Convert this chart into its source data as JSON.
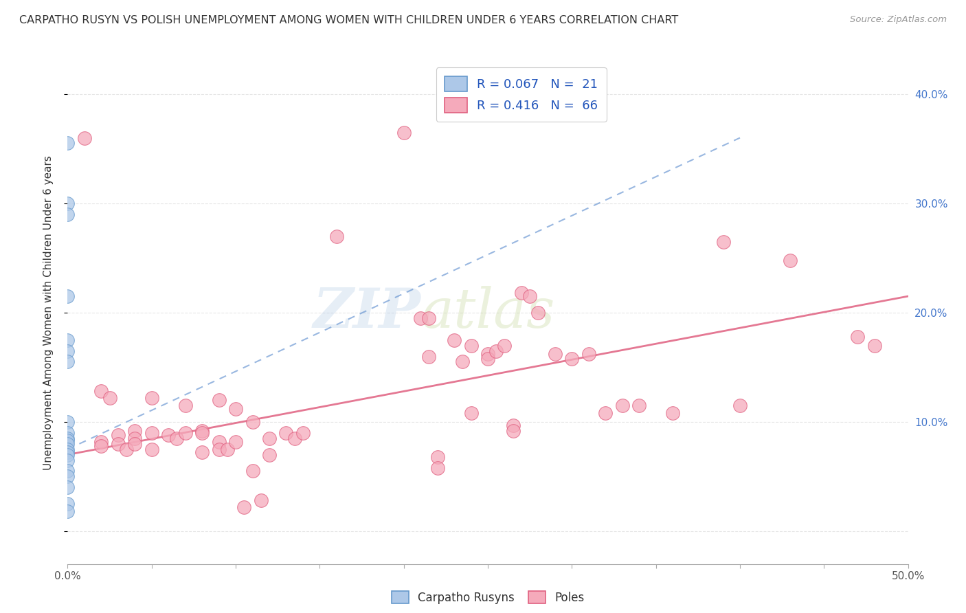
{
  "title": "CARPATHO RUSYN VS POLISH UNEMPLOYMENT AMONG WOMEN WITH CHILDREN UNDER 6 YEARS CORRELATION CHART",
  "source": "Source: ZipAtlas.com",
  "ylabel": "Unemployment Among Women with Children Under 6 years",
  "xmin": 0.0,
  "xmax": 0.5,
  "ymin": -0.03,
  "ymax": 0.43,
  "xtick_positions": [
    0.0,
    0.05,
    0.1,
    0.15,
    0.2,
    0.25,
    0.3,
    0.35,
    0.4,
    0.45,
    0.5
  ],
  "xtick_labels_sparse": {
    "0.0": "0.0%",
    "0.50": "50.0%"
  },
  "ytick_positions": [
    0.0,
    0.1,
    0.2,
    0.3,
    0.4
  ],
  "ytick_labels_right": [
    "",
    "10.0%",
    "20.0%",
    "30.0%",
    "40.0%"
  ],
  "legend_label1": "Carpatho Rusyns",
  "legend_label2": "Poles",
  "color_rusyn_fill": "#adc8e8",
  "color_rusyn_edge": "#6699cc",
  "color_poles_fill": "#f5aabb",
  "color_poles_edge": "#e06080",
  "color_rusyn_trend": "#5588cc",
  "color_poles_trend": "#e06080",
  "watermark_zip": "ZIP",
  "watermark_atlas": "atlas",
  "rusyn_points": [
    [
      0.0,
      0.355
    ],
    [
      0.0,
      0.3
    ],
    [
      0.0,
      0.29
    ],
    [
      0.0,
      0.215
    ],
    [
      0.0,
      0.175
    ],
    [
      0.0,
      0.165
    ],
    [
      0.0,
      0.155
    ],
    [
      0.0,
      0.1
    ],
    [
      0.0,
      0.09
    ],
    [
      0.0,
      0.085
    ],
    [
      0.0,
      0.083
    ],
    [
      0.0,
      0.08
    ],
    [
      0.0,
      0.075
    ],
    [
      0.0,
      0.072
    ],
    [
      0.0,
      0.07
    ],
    [
      0.0,
      0.065
    ],
    [
      0.0,
      0.055
    ],
    [
      0.0,
      0.05
    ],
    [
      0.0,
      0.04
    ],
    [
      0.0,
      0.025
    ],
    [
      0.0,
      0.018
    ]
  ],
  "poles_points": [
    [
      0.01,
      0.36
    ],
    [
      0.02,
      0.128
    ],
    [
      0.02,
      0.082
    ],
    [
      0.02,
      0.078
    ],
    [
      0.025,
      0.122
    ],
    [
      0.03,
      0.088
    ],
    [
      0.03,
      0.08
    ],
    [
      0.035,
      0.075
    ],
    [
      0.04,
      0.092
    ],
    [
      0.04,
      0.085
    ],
    [
      0.04,
      0.08
    ],
    [
      0.05,
      0.122
    ],
    [
      0.05,
      0.09
    ],
    [
      0.05,
      0.075
    ],
    [
      0.06,
      0.088
    ],
    [
      0.065,
      0.085
    ],
    [
      0.07,
      0.115
    ],
    [
      0.07,
      0.09
    ],
    [
      0.08,
      0.092
    ],
    [
      0.08,
      0.09
    ],
    [
      0.08,
      0.072
    ],
    [
      0.09,
      0.12
    ],
    [
      0.09,
      0.082
    ],
    [
      0.09,
      0.075
    ],
    [
      0.095,
      0.075
    ],
    [
      0.1,
      0.112
    ],
    [
      0.1,
      0.082
    ],
    [
      0.105,
      0.022
    ],
    [
      0.11,
      0.1
    ],
    [
      0.11,
      0.055
    ],
    [
      0.115,
      0.028
    ],
    [
      0.12,
      0.085
    ],
    [
      0.12,
      0.07
    ],
    [
      0.13,
      0.09
    ],
    [
      0.135,
      0.085
    ],
    [
      0.14,
      0.09
    ],
    [
      0.16,
      0.27
    ],
    [
      0.2,
      0.365
    ],
    [
      0.21,
      0.195
    ],
    [
      0.215,
      0.16
    ],
    [
      0.215,
      0.195
    ],
    [
      0.22,
      0.068
    ],
    [
      0.22,
      0.058
    ],
    [
      0.23,
      0.175
    ],
    [
      0.235,
      0.155
    ],
    [
      0.24,
      0.17
    ],
    [
      0.24,
      0.108
    ],
    [
      0.25,
      0.162
    ],
    [
      0.25,
      0.158
    ],
    [
      0.255,
      0.165
    ],
    [
      0.26,
      0.17
    ],
    [
      0.265,
      0.097
    ],
    [
      0.265,
      0.092
    ],
    [
      0.27,
      0.218
    ],
    [
      0.275,
      0.215
    ],
    [
      0.28,
      0.2
    ],
    [
      0.29,
      0.162
    ],
    [
      0.3,
      0.158
    ],
    [
      0.31,
      0.162
    ],
    [
      0.32,
      0.108
    ],
    [
      0.33,
      0.115
    ],
    [
      0.34,
      0.115
    ],
    [
      0.36,
      0.108
    ],
    [
      0.39,
      0.265
    ],
    [
      0.4,
      0.115
    ],
    [
      0.43,
      0.248
    ],
    [
      0.47,
      0.178
    ],
    [
      0.48,
      0.17
    ]
  ],
  "rusyn_trend_x": [
    0.0,
    0.4
  ],
  "rusyn_trend_y": [
    0.075,
    0.36
  ],
  "poles_trend_x": [
    0.0,
    0.5
  ],
  "poles_trend_y": [
    0.07,
    0.215
  ],
  "background_color": "#ffffff",
  "grid_color": "#e0e0e0"
}
